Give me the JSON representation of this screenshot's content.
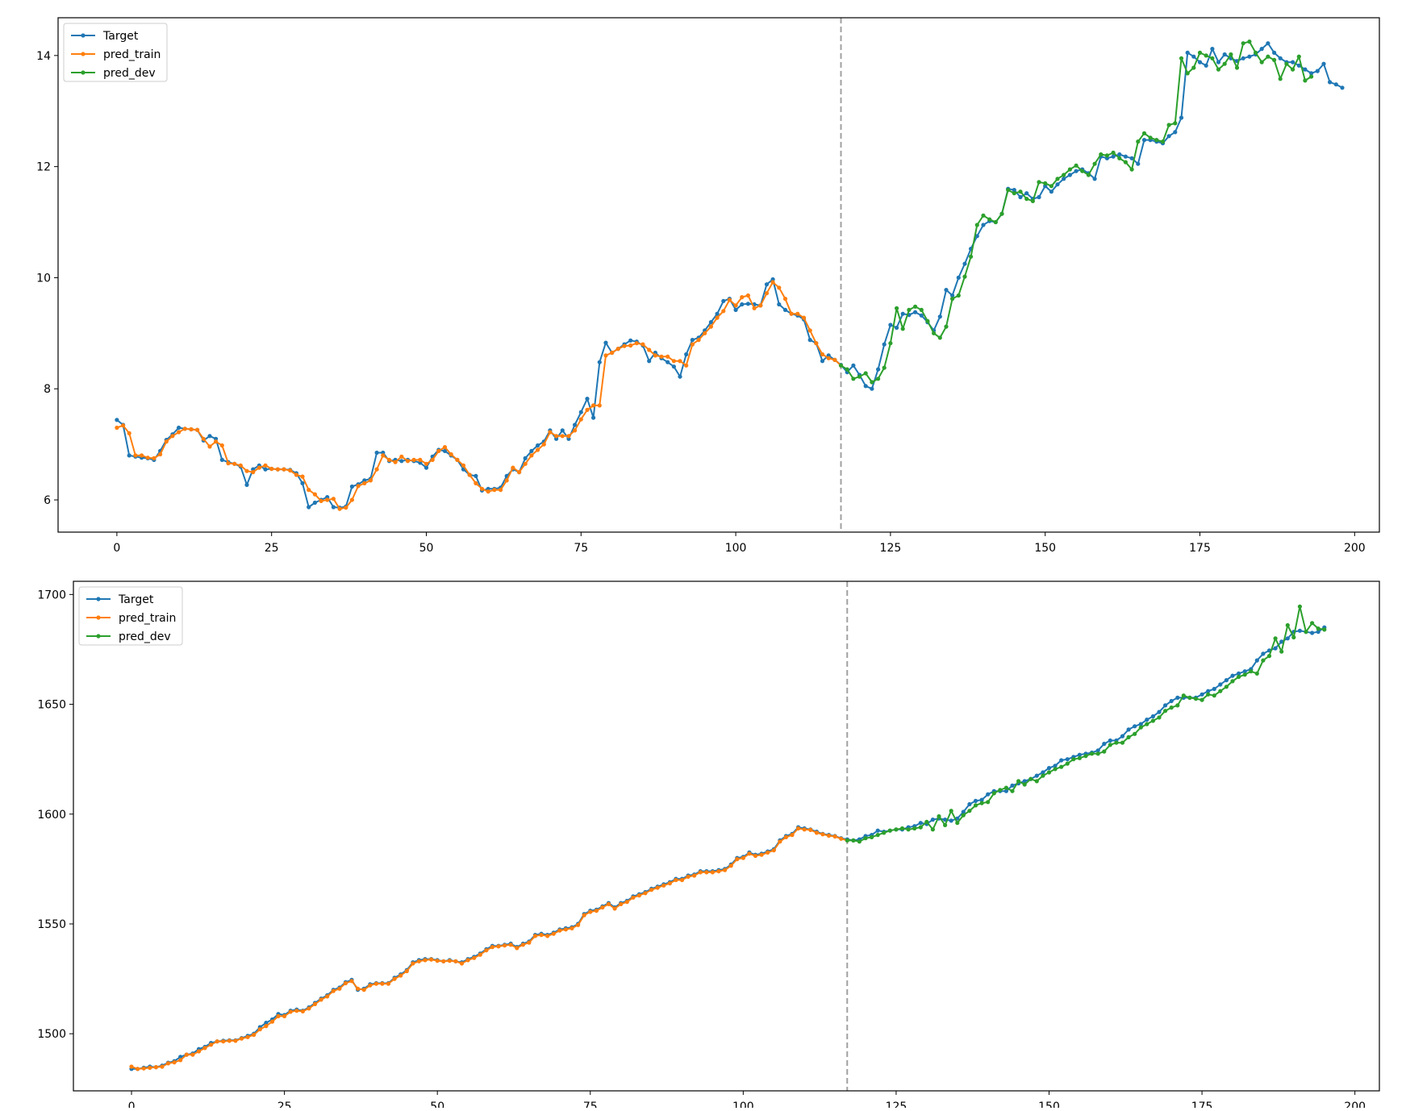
{
  "chart_data": [
    {
      "type": "line",
      "title": "",
      "xlabel": "",
      "ylabel": "",
      "xlim": [
        -9.5,
        204
      ],
      "ylim": [
        5.42,
        14.68
      ],
      "xticks": [
        0,
        25,
        50,
        75,
        100,
        125,
        150,
        175,
        200
      ],
      "xtick_labels": [
        "0",
        "25",
        "50",
        "75",
        "100",
        "125",
        "150",
        "175",
        "200"
      ],
      "yticks": [
        6,
        8,
        10,
        12,
        14
      ],
      "ytick_labels": [
        "6",
        "8",
        "10",
        "12",
        "14"
      ],
      "split_x": 117,
      "legend_position": "top-left",
      "colors": {
        "Target": "#1f77b4",
        "pred_train": "#ff7f0e",
        "pred_dev": "#2ca02c",
        "split": "#a0a0a0"
      },
      "series": [
        {
          "name": "Target",
          "x_start": 0,
          "values": [
            7.44,
            7.35,
            6.8,
            6.78,
            6.76,
            6.75,
            6.72,
            6.88,
            7.08,
            7.18,
            7.3,
            7.28,
            7.27,
            7.26,
            7.07,
            7.15,
            7.1,
            6.72,
            6.68,
            6.65,
            6.6,
            6.27,
            6.55,
            6.62,
            6.55,
            6.56,
            6.55,
            6.55,
            6.54,
            6.48,
            6.3,
            5.87,
            5.95,
            6.0,
            6.05,
            5.87,
            5.86,
            5.88,
            6.24,
            6.28,
            6.35,
            6.38,
            6.85,
            6.85,
            6.7,
            6.72,
            6.7,
            6.72,
            6.7,
            6.67,
            6.58,
            6.78,
            6.9,
            6.88,
            6.8,
            6.72,
            6.55,
            6.45,
            6.43,
            6.17,
            6.2,
            6.2,
            6.22,
            6.43,
            6.55,
            6.5,
            6.75,
            6.88,
            6.98,
            7.05,
            7.25,
            7.1,
            7.25,
            7.1,
            7.35,
            7.58,
            7.82,
            7.48,
            8.48,
            8.83,
            8.65,
            8.72,
            8.8,
            8.87,
            8.85,
            8.78,
            8.5,
            8.65,
            8.55,
            8.48,
            8.4,
            8.22,
            8.62,
            8.88,
            8.92,
            9.05,
            9.2,
            9.35,
            9.58,
            9.62,
            9.42,
            9.52,
            9.53,
            9.52,
            9.5,
            9.88,
            9.97,
            9.52,
            9.42,
            9.35,
            9.32,
            9.25,
            8.88,
            8.82,
            8.5,
            8.6,
            8.52,
            8.43,
            8.3,
            8.42,
            8.25,
            8.05,
            8.0,
            8.35,
            8.8,
            9.15,
            9.1,
            9.35,
            9.33,
            9.38,
            9.32,
            9.2,
            9.05,
            9.3,
            9.78,
            9.68,
            10.0,
            10.25,
            10.52,
            10.75,
            10.95,
            11.02,
            11.0,
            11.15,
            11.6,
            11.58,
            11.45,
            11.52,
            11.42,
            11.45,
            11.65,
            11.55,
            11.68,
            11.78,
            11.85,
            11.92,
            11.95,
            11.88,
            11.78,
            12.18,
            12.15,
            12.18,
            12.22,
            12.18,
            12.15,
            12.05,
            12.48,
            12.48,
            12.45,
            12.42,
            12.55,
            12.62,
            12.88,
            14.05,
            13.98,
            13.88,
            13.82,
            14.12,
            13.88,
            14.02,
            13.95,
            13.9,
            13.95,
            13.98,
            14.02,
            14.12,
            14.22,
            14.05,
            13.95,
            13.88,
            13.88,
            13.82,
            13.75,
            13.68,
            13.72,
            13.85,
            13.52,
            13.48,
            13.42
          ]
        },
        {
          "name": "pred_train",
          "x_start": 0,
          "values": [
            7.3,
            7.34,
            7.2,
            6.8,
            6.8,
            6.76,
            6.75,
            6.82,
            7.05,
            7.15,
            7.22,
            7.28,
            7.27,
            7.26,
            7.1,
            6.96,
            7.05,
            6.98,
            6.66,
            6.65,
            6.62,
            6.52,
            6.5,
            6.58,
            6.62,
            6.56,
            6.55,
            6.55,
            6.53,
            6.45,
            6.42,
            6.18,
            6.1,
            5.98,
            6.0,
            6.02,
            5.84,
            5.86,
            6.0,
            6.25,
            6.3,
            6.35,
            6.55,
            6.8,
            6.72,
            6.68,
            6.78,
            6.7,
            6.72,
            6.72,
            6.65,
            6.72,
            6.88,
            6.95,
            6.82,
            6.72,
            6.62,
            6.45,
            6.3,
            6.2,
            6.15,
            6.18,
            6.18,
            6.35,
            6.58,
            6.5,
            6.65,
            6.8,
            6.9,
            7.0,
            7.22,
            7.15,
            7.15,
            7.15,
            7.25,
            7.45,
            7.62,
            7.7,
            7.7,
            8.6,
            8.65,
            8.72,
            8.77,
            8.78,
            8.82,
            8.8,
            8.7,
            8.6,
            8.58,
            8.58,
            8.5,
            8.5,
            8.42,
            8.8,
            8.88,
            9.0,
            9.12,
            9.28,
            9.4,
            9.6,
            9.5,
            9.65,
            9.68,
            9.45,
            9.5,
            9.72,
            9.92,
            9.82,
            9.62,
            9.35,
            9.35,
            9.28,
            9.05,
            8.82,
            8.62,
            8.55,
            8.52,
            8.42
          ]
        },
        {
          "name": "pred_dev",
          "x_start": 117,
          "values": [
            8.42,
            8.35,
            8.18,
            8.22,
            8.28,
            8.12,
            8.18,
            8.38,
            8.82,
            9.45,
            9.08,
            9.42,
            9.48,
            9.42,
            9.22,
            9.0,
            8.92,
            9.12,
            9.62,
            9.68,
            10.02,
            10.38,
            10.95,
            11.12,
            11.05,
            11.0,
            11.15,
            11.58,
            11.52,
            11.55,
            11.42,
            11.38,
            11.72,
            11.7,
            11.65,
            11.78,
            11.85,
            11.95,
            12.02,
            11.92,
            11.85,
            12.05,
            12.22,
            12.2,
            12.25,
            12.15,
            12.08,
            11.95,
            12.45,
            12.6,
            12.52,
            12.48,
            12.45,
            12.75,
            12.78,
            13.95,
            13.68,
            13.78,
            14.05,
            14.0,
            13.95,
            13.75,
            13.85,
            14.02,
            13.78,
            14.22,
            14.25,
            14.05,
            13.88,
            13.98,
            13.92,
            13.58,
            13.85,
            13.75,
            13.98,
            13.55,
            13.62
          ]
        }
      ]
    },
    {
      "type": "line",
      "title": "",
      "xlabel": "",
      "ylabel": "",
      "xlim": [
        -9.5,
        204
      ],
      "ylim": [
        1474,
        1706
      ],
      "xticks": [
        0,
        25,
        50,
        75,
        100,
        125,
        150,
        175,
        200
      ],
      "xtick_labels": [
        "0",
        "25",
        "50",
        "75",
        "100",
        "125",
        "150",
        "175",
        "200"
      ],
      "yticks": [
        1500,
        1550,
        1600,
        1650,
        1700
      ],
      "ytick_labels": [
        "1500",
        "1550",
        "1600",
        "1650",
        "1700"
      ],
      "split_x": 117,
      "legend_position": "top-left",
      "colors": {
        "Target": "#1f77b4",
        "pred_train": "#ff7f0e",
        "pred_dev": "#2ca02c",
        "split": "#a0a0a0"
      },
      "series": [
        {
          "name": "Target",
          "x_start": 0,
          "values": [
            1484,
            1484,
            1484.5,
            1485,
            1484.8,
            1485.5,
            1486.8,
            1487.5,
            1489.5,
            1490.5,
            1491,
            1493,
            1494,
            1495.8,
            1496.5,
            1496.8,
            1497,
            1497,
            1498,
            1499,
            1500,
            1503,
            1505,
            1506.5,
            1509,
            1508.5,
            1510.5,
            1511,
            1510.5,
            1512,
            1514,
            1516,
            1517.5,
            1520,
            1521,
            1523.5,
            1524.5,
            1520,
            1520.5,
            1522.5,
            1523,
            1523,
            1523,
            1525.5,
            1527,
            1529,
            1532.5,
            1533.5,
            1534,
            1534,
            1533.5,
            1533,
            1533.5,
            1533,
            1532.5,
            1534,
            1535,
            1536.5,
            1538.5,
            1540,
            1540,
            1540.5,
            1541,
            1539.5,
            1541,
            1542,
            1545,
            1545.5,
            1545,
            1546,
            1547.5,
            1548,
            1548.5,
            1550,
            1554.5,
            1556,
            1556.5,
            1558,
            1559.5,
            1557.5,
            1559.5,
            1560.5,
            1562.5,
            1563.5,
            1564.5,
            1566,
            1567,
            1568,
            1569,
            1570.5,
            1570.5,
            1572,
            1572.5,
            1574,
            1574,
            1574,
            1574.5,
            1575,
            1577,
            1580,
            1580.5,
            1582.5,
            1581.5,
            1582,
            1583,
            1584,
            1588,
            1590,
            1591,
            1594,
            1593.5,
            1593,
            1592,
            1591,
            1590.5,
            1590,
            1589,
            1588.5,
            1588,
            1588.5,
            1590,
            1590.5,
            1592.5,
            1592,
            1592.5,
            1593,
            1593,
            1594,
            1594.5,
            1596,
            1595.5,
            1597.5,
            1598,
            1597.5,
            1597,
            1598,
            1601,
            1604.5,
            1606,
            1606.5,
            1609,
            1610.5,
            1610.5,
            1610.5,
            1613,
            1614,
            1615,
            1616,
            1617.5,
            1619,
            1621,
            1622,
            1624.5,
            1625,
            1626,
            1627,
            1627.5,
            1628,
            1629,
            1632,
            1633.5,
            1633.5,
            1635.5,
            1638.5,
            1640,
            1641,
            1643,
            1644.5,
            1646.5,
            1649.5,
            1651.5,
            1653,
            1653,
            1653,
            1653,
            1654.5,
            1656,
            1657,
            1659,
            1661,
            1663,
            1664,
            1665,
            1666,
            1670,
            1673,
            1674.5,
            1675.5,
            1678.5,
            1680,
            1683,
            1683.5,
            1683,
            1682.5,
            1683,
            1685
          ]
        },
        {
          "name": "pred_train",
          "x_start": 0,
          "values": [
            1485,
            1484,
            1484.2,
            1484.5,
            1484.8,
            1485,
            1486.5,
            1487,
            1488,
            1490.5,
            1490.5,
            1492,
            1493.5,
            1495,
            1496.5,
            1496.5,
            1496.8,
            1496.8,
            1497.8,
            1498.5,
            1499.5,
            1502,
            1503.5,
            1505.5,
            1508,
            1508,
            1510,
            1510.5,
            1510.2,
            1511.5,
            1513.5,
            1515.5,
            1517,
            1519.5,
            1520.5,
            1523,
            1524,
            1520.5,
            1520,
            1522,
            1522.8,
            1522.8,
            1522.8,
            1525,
            1526.5,
            1528.5,
            1532,
            1533,
            1533.5,
            1533.8,
            1533.2,
            1533,
            1533.2,
            1533,
            1532,
            1533.5,
            1534.5,
            1536,
            1538,
            1539.5,
            1539.8,
            1540.2,
            1540.5,
            1539,
            1540.5,
            1541.5,
            1544.5,
            1545,
            1544.5,
            1545.5,
            1547,
            1547.5,
            1548,
            1549.5,
            1554,
            1555.5,
            1556,
            1557.5,
            1559,
            1557,
            1559,
            1560,
            1562,
            1563,
            1564,
            1565.5,
            1566.5,
            1567.5,
            1568.5,
            1570,
            1570,
            1571.5,
            1572,
            1573.5,
            1573.5,
            1573.5,
            1574,
            1574.5,
            1576.5,
            1579.5,
            1580,
            1582,
            1581,
            1581.5,
            1582.5,
            1583.5,
            1587.5,
            1589.5,
            1590.5,
            1593.5,
            1593,
            1592.8,
            1591.5,
            1590.8,
            1590.2,
            1589.8,
            1588.8,
            1588
          ]
        },
        {
          "name": "pred_dev",
          "x_start": 117,
          "values": [
            1588,
            1588,
            1587.5,
            1589,
            1589.5,
            1590.5,
            1591.5,
            1592.5,
            1593,
            1593.5,
            1593,
            1593.5,
            1594,
            1596.5,
            1593,
            1599,
            1595,
            1601.5,
            1596,
            1599.5,
            1601.5,
            1604,
            1605,
            1605.5,
            1609.5,
            1611,
            1612,
            1610.5,
            1615,
            1613.5,
            1616,
            1615,
            1617.5,
            1619,
            1620.5,
            1621.5,
            1623,
            1625,
            1625.5,
            1626.5,
            1627.5,
            1627.5,
            1628.5,
            1631.5,
            1632.5,
            1632.5,
            1635,
            1636.5,
            1639.5,
            1641,
            1642.5,
            1644,
            1647,
            1648.5,
            1649.5,
            1654,
            1653,
            1652.5,
            1652,
            1654.5,
            1654,
            1656,
            1658,
            1660.5,
            1662.5,
            1663.5,
            1665,
            1664,
            1670,
            1672,
            1680,
            1674,
            1686,
            1680.5,
            1694.5,
            1683,
            1687,
            1684.5,
            1684
          ]
        }
      ]
    }
  ]
}
